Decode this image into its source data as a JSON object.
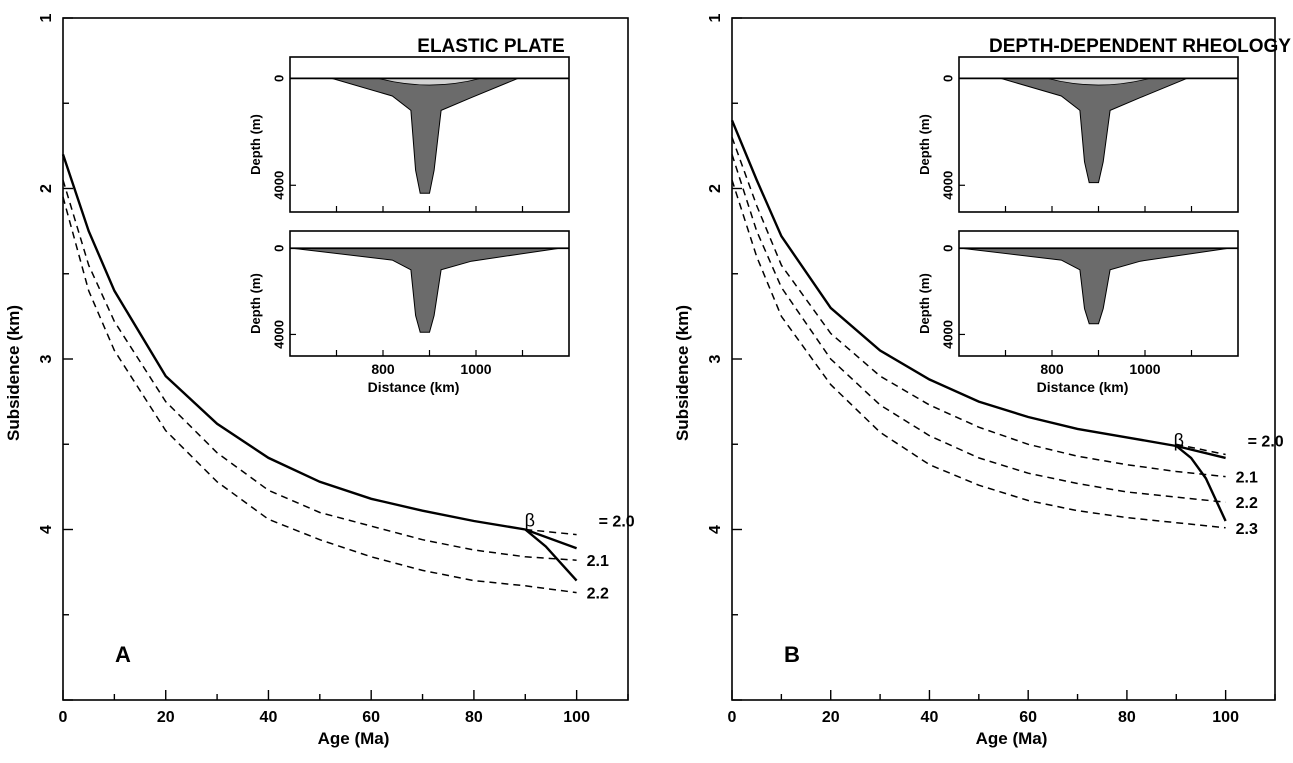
{
  "chart_data": [
    {
      "panel_label": "A",
      "type": "line",
      "title": "ELASTIC PLATE",
      "xlabel": "Age (Ma)",
      "ylabel": "Subsidence (km)",
      "xlim": [
        0,
        110
      ],
      "ylim": [
        1,
        5
      ],
      "y_inverted": true,
      "xticks": [
        "0",
        "20",
        "40",
        "60",
        "80",
        "100"
      ],
      "yticks": [
        "1",
        "2",
        "3",
        "4"
      ],
      "beta_symbol": "β",
      "series": [
        {
          "label": "= 2.0",
          "style": "solid",
          "x": [
            0,
            5,
            10,
            20,
            30,
            40,
            50,
            60,
            70,
            80,
            90,
            100
          ],
          "y": [
            1.8,
            2.25,
            2.6,
            3.1,
            3.38,
            3.58,
            3.72,
            3.82,
            3.89,
            3.95,
            4.0,
            4.11
          ]
        },
        {
          "label": "= 2.0",
          "style": "dashed",
          "x": [
            90,
            100
          ],
          "y": [
            4.0,
            4.03
          ]
        },
        {
          "label": "2.1",
          "style": "dashed",
          "x": [
            0,
            5,
            10,
            20,
            30,
            40,
            50,
            60,
            70,
            80,
            90,
            100
          ],
          "y": [
            1.95,
            2.45,
            2.78,
            3.25,
            3.55,
            3.77,
            3.9,
            3.98,
            4.06,
            4.12,
            4.16,
            4.18
          ]
        },
        {
          "label": "2.2",
          "style": "dashed",
          "x": [
            0,
            5,
            10,
            20,
            30,
            40,
            50,
            60,
            70,
            80,
            90,
            100
          ],
          "y": [
            2.05,
            2.6,
            2.95,
            3.42,
            3.72,
            3.94,
            4.06,
            4.16,
            4.24,
            4.3,
            4.33,
            4.37
          ]
        },
        {
          "label": "",
          "style": "solid",
          "x": [
            90,
            94,
            97,
            100
          ],
          "y": [
            4.0,
            4.1,
            4.2,
            4.3
          ]
        }
      ],
      "inset": {
        "panels": [
          {
            "ylabel": "Depth (m)",
            "yticks": [
              "0",
              "4000"
            ]
          },
          {
            "ylabel": "Depth (m)",
            "yticks": [
              "0",
              "4000"
            ]
          }
        ],
        "xlabel": "Distance (km)",
        "xticks": [
          "800",
          "1000"
        ],
        "xlim": [
          600,
          1200
        ],
        "ylim": [
          -800,
          5000
        ]
      }
    },
    {
      "panel_label": "B",
      "type": "line",
      "title": "DEPTH-DEPENDENT RHEOLOGY",
      "xlabel": "Age (Ma)",
      "ylabel": "Subsidence (km)",
      "xlim": [
        0,
        110
      ],
      "ylim": [
        1,
        5
      ],
      "y_inverted": true,
      "xticks": [
        "0",
        "20",
        "40",
        "60",
        "80",
        "100"
      ],
      "yticks": [
        "1",
        "2",
        "3",
        "4"
      ],
      "beta_symbol": "β",
      "series": [
        {
          "label": "= 2.0",
          "style": "solid",
          "x": [
            0,
            5,
            10,
            20,
            30,
            40,
            50,
            60,
            70,
            80,
            90,
            100
          ],
          "y": [
            1.6,
            1.95,
            2.28,
            2.7,
            2.95,
            3.12,
            3.25,
            3.34,
            3.41,
            3.46,
            3.51,
            3.58
          ]
        },
        {
          "label": "= 2.0",
          "style": "dashed",
          "x": [
            90,
            100
          ],
          "y": [
            3.5,
            3.56
          ]
        },
        {
          "label": "2.1",
          "style": "dashed",
          "x": [
            0,
            5,
            10,
            20,
            30,
            40,
            50,
            60,
            70,
            80,
            90,
            100
          ],
          "y": [
            1.7,
            2.1,
            2.45,
            2.85,
            3.1,
            3.27,
            3.4,
            3.5,
            3.57,
            3.62,
            3.66,
            3.69
          ]
        },
        {
          "label": "2.2",
          "style": "dashed",
          "x": [
            0,
            5,
            10,
            20,
            30,
            40,
            50,
            60,
            70,
            80,
            90,
            100
          ],
          "y": [
            1.8,
            2.25,
            2.58,
            3.0,
            3.27,
            3.45,
            3.58,
            3.67,
            3.73,
            3.78,
            3.81,
            3.84
          ]
        },
        {
          "label": "2.3",
          "style": "dashed",
          "x": [
            0,
            5,
            10,
            20,
            30,
            40,
            50,
            60,
            70,
            80,
            90,
            100
          ],
          "y": [
            1.95,
            2.4,
            2.75,
            3.15,
            3.43,
            3.62,
            3.74,
            3.83,
            3.89,
            3.93,
            3.96,
            3.99
          ]
        },
        {
          "label": "",
          "style": "solid",
          "x": [
            90,
            93,
            96,
            100
          ],
          "y": [
            3.51,
            3.58,
            3.7,
            3.95
          ]
        }
      ],
      "inset": {
        "panels": [
          {
            "ylabel": "Depth (m)",
            "yticks": [
              "0",
              "4000"
            ]
          },
          {
            "ylabel": "Depth (m)",
            "yticks": [
              "0",
              "4000"
            ]
          }
        ],
        "xlabel": "Distance (km)",
        "xticks": [
          "800",
          "1000"
        ],
        "xlim": [
          600,
          1200
        ],
        "ylim": [
          -800,
          5000
        ]
      }
    }
  ]
}
